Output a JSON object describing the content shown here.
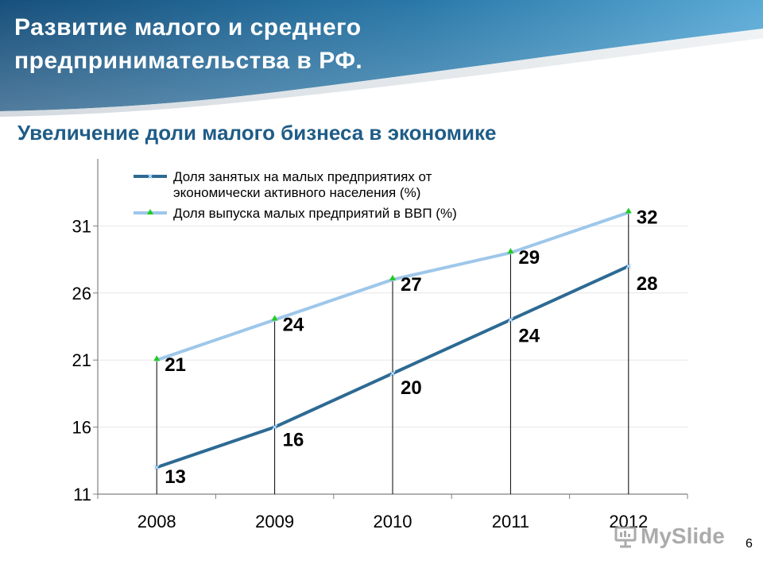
{
  "slide": {
    "title": "Развитие малого и среднего предпринимательства в РФ.",
    "subtitle": "Увеличение доли малого бизнеса в экономике",
    "page_number": "6"
  },
  "watermark": {
    "text": "MySlide",
    "icon": "presentation-board-icon"
  },
  "colors": {
    "header_dark": "#17507c",
    "header_light": "#4a9ccc",
    "title": "#1f5c87",
    "series_employment": "#2d6a93",
    "series_gdp": "#9ec7ea",
    "gdp_marker": "#22cc22"
  },
  "chart_data": {
    "type": "line",
    "title": "",
    "xlabel": "",
    "ylabel": "",
    "categories": [
      "2008",
      "2009",
      "2010",
      "2011",
      "2012"
    ],
    "ylim": [
      11,
      36
    ],
    "yticks": [
      11,
      16,
      21,
      26,
      31
    ],
    "grid": true,
    "legend_position": "top",
    "drop_lines": true,
    "series": [
      {
        "name": "Доля занятых на малых предприятиях от экономически активного населения (%)",
        "legend_lines": [
          "Доля занятых на малых предприятиях от",
          "экономически активного населения (%)"
        ],
        "values": [
          13,
          16,
          20,
          24,
          28
        ],
        "labels": [
          "13",
          "16",
          "20",
          "24",
          "28"
        ],
        "color": "#2d6a93",
        "marker": "x"
      },
      {
        "name": "Доля выпуска малых предприятий в ВВП (%)",
        "legend_lines": [
          "Доля выпуска малых предприятий в ВВП (%)"
        ],
        "values": [
          21,
          24,
          27,
          29,
          32
        ],
        "labels": [
          "21",
          "24",
          "27",
          "29",
          "32"
        ],
        "color": "#9ec7ea",
        "marker": "triangle"
      }
    ]
  }
}
